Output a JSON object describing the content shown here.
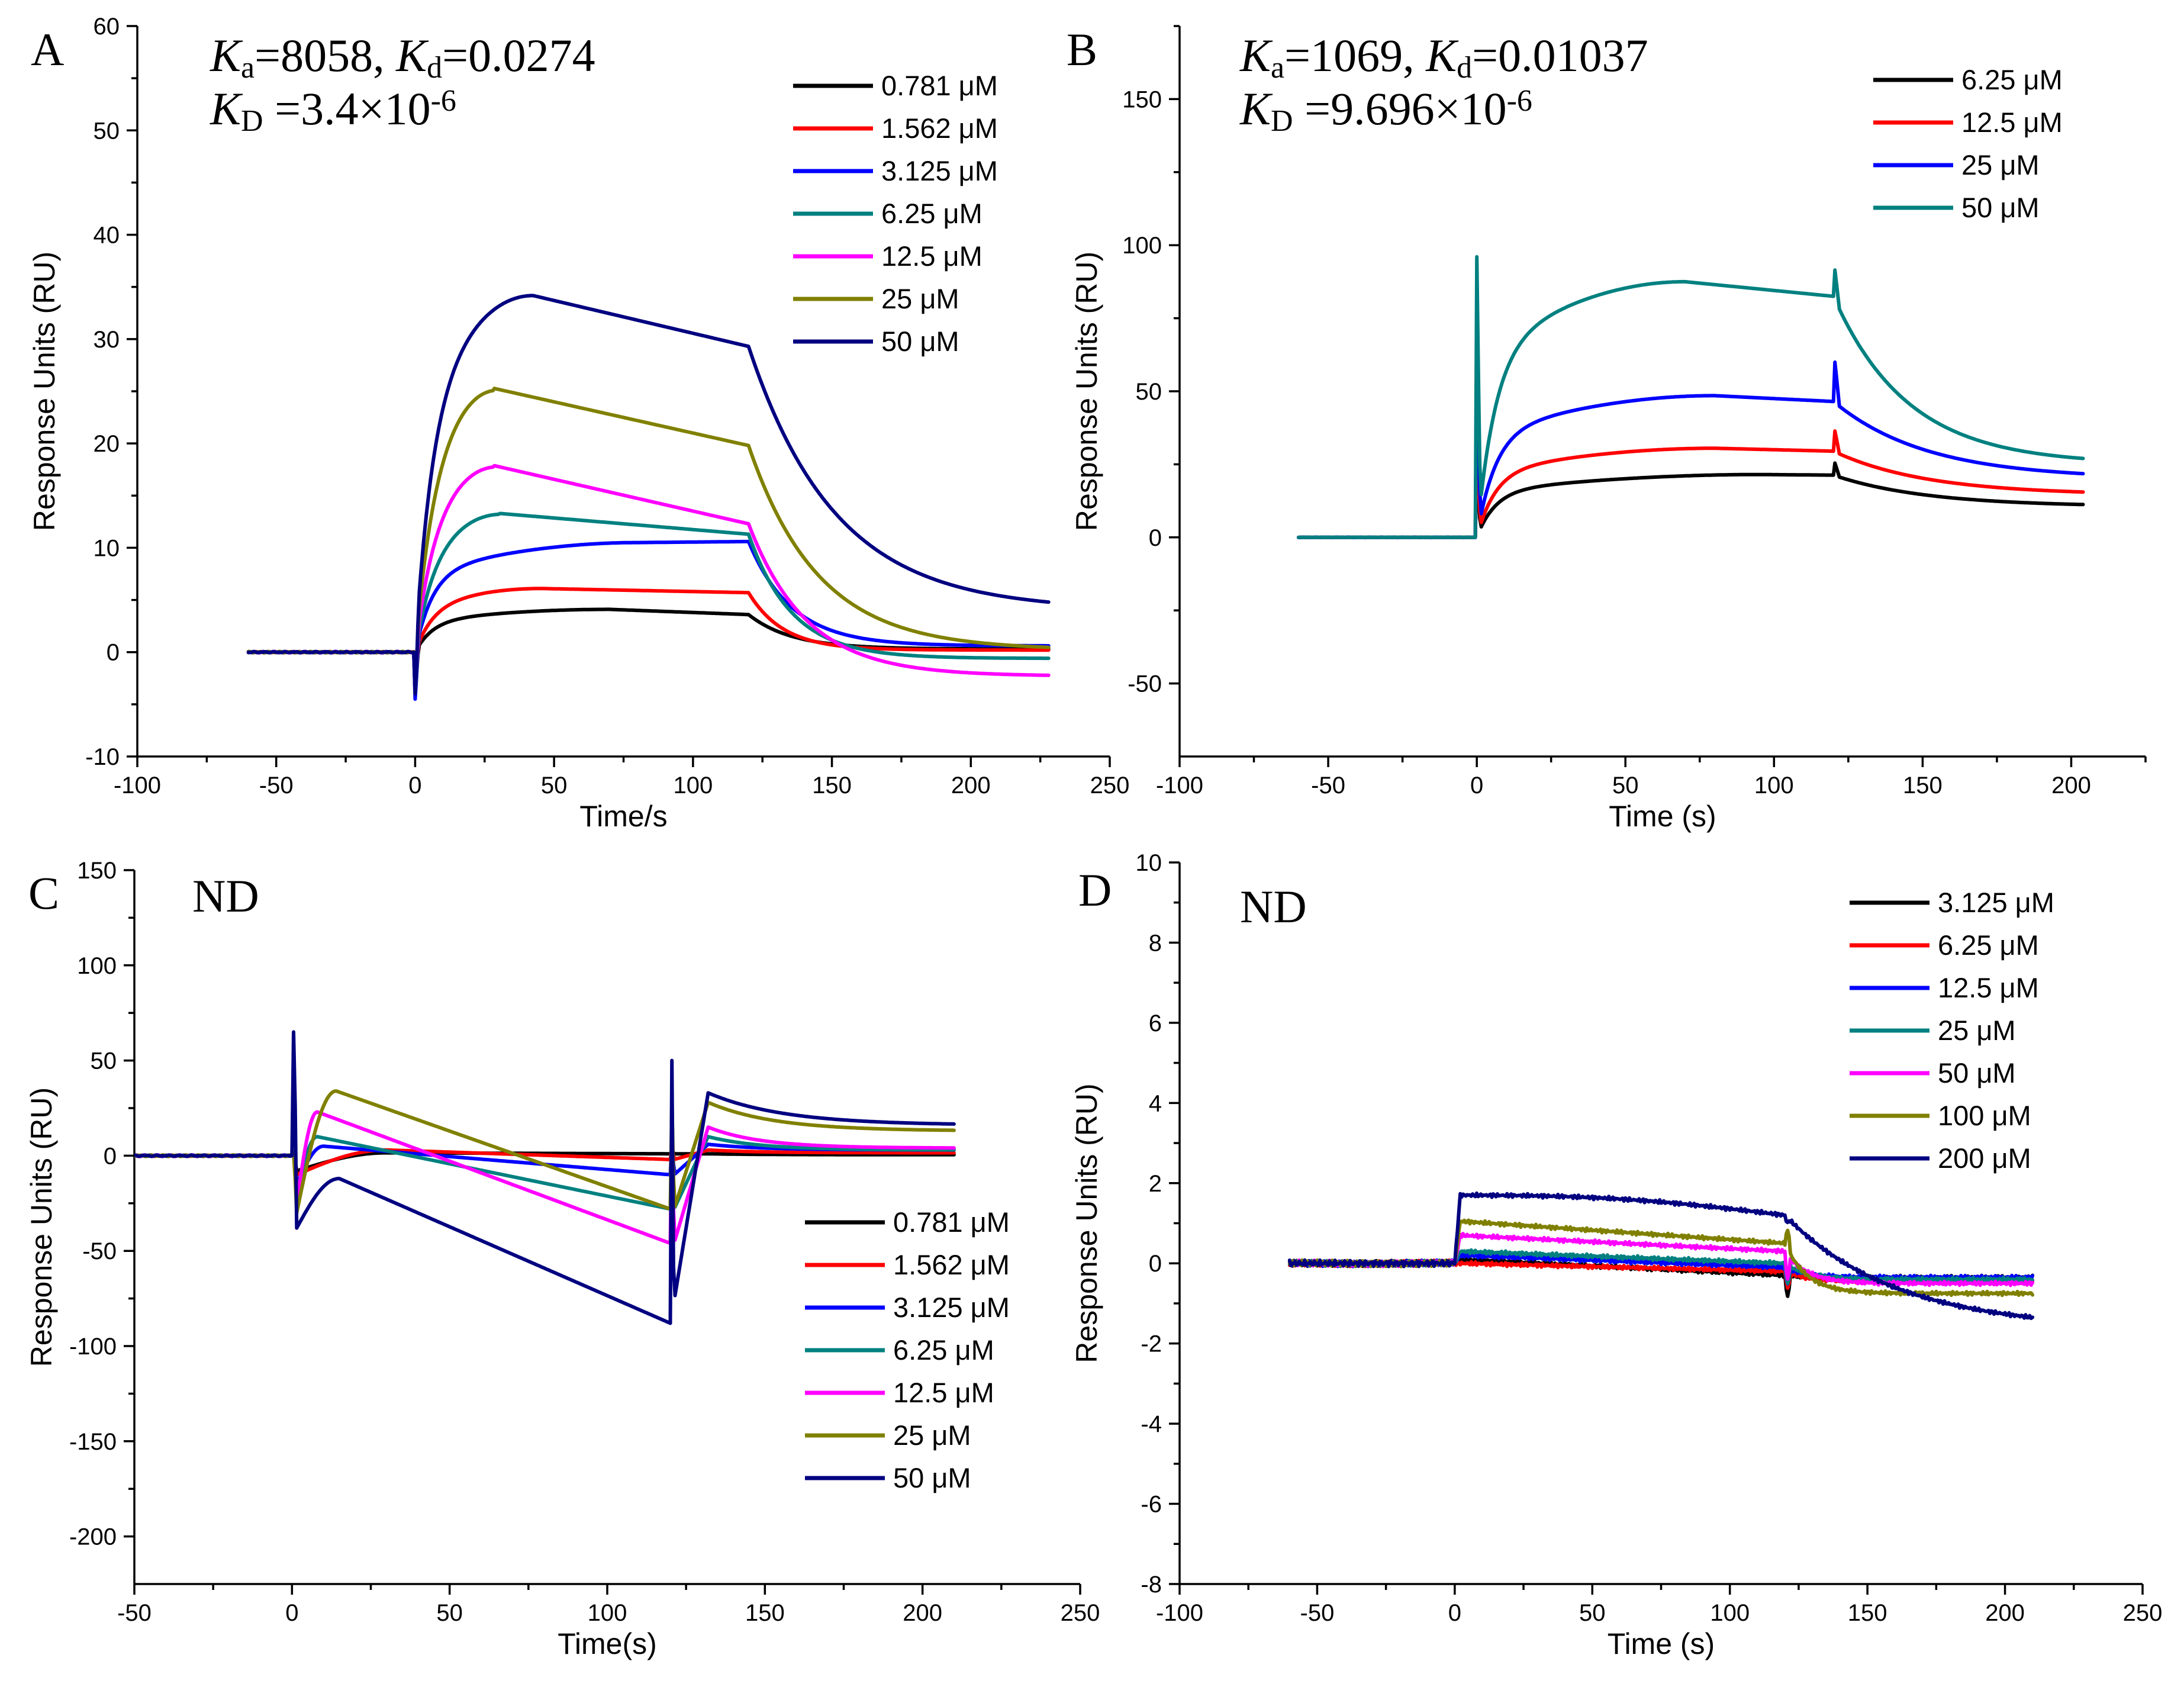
{
  "chart_data": [
    {
      "type": "line",
      "panel": "A",
      "xlabel": "Time/s",
      "ylabel": "Response Units (RU)",
      "xlim": [
        -100,
        250
      ],
      "ylim": [
        -10,
        60
      ],
      "xticks": [
        -100,
        -50,
        0,
        50,
        100,
        150,
        200,
        250
      ],
      "yticks": [
        -10,
        0,
        10,
        20,
        30,
        40,
        50,
        60
      ],
      "annotation": [
        [
          {
            "t": "K",
            "i": true
          },
          {
            "t": "a",
            "sub": true
          },
          {
            "t": "=8058, "
          },
          {
            "t": "K",
            "i": true
          },
          {
            "t": "d",
            "sub": true
          },
          {
            "t": "=0.0274"
          }
        ],
        [
          {
            "t": "K",
            "i": true
          },
          {
            "t": "D",
            "sub": true
          },
          {
            "t": " =3.4×10"
          },
          {
            "t": "-6",
            "sup": true
          }
        ]
      ],
      "legend_position": "top-right",
      "params": {
        "t_end": 228,
        "inj_end": 120
      },
      "series": [
        {
          "name": "0.781 μM",
          "color": "#000000",
          "peak": 4.1,
          "t_peak": 70,
          "end_inj": 3.6,
          "floor": 0.3,
          "decay": 0.04,
          "spike": -4.0
        },
        {
          "name": "1.562 μM",
          "color": "#ff0000",
          "peak": 6.1,
          "t_peak": 45,
          "end_inj": 5.7,
          "floor": 0.2,
          "decay": 0.05,
          "spike": -3.0
        },
        {
          "name": "3.125 μM",
          "color": "#0000ff",
          "peak": 10.5,
          "t_peak": 80,
          "end_inj": 10.6,
          "floor": 0.6,
          "decay": 0.04,
          "spike": -4.5
        },
        {
          "name": "6.25 μM",
          "color": "#008080",
          "peak": 13.3,
          "t_peak": 30,
          "end_inj": 11.3,
          "floor": -0.6,
          "decay": 0.04,
          "spike": -4.0
        },
        {
          "name": "12.5 μM",
          "color": "#ff00ff",
          "peak": 17.9,
          "t_peak": 28,
          "end_inj": 12.3,
          "floor": -2.3,
          "decay": 0.03,
          "spike": -3.5
        },
        {
          "name": "25 μM",
          "color": "#808000",
          "peak": 25.3,
          "t_peak": 28,
          "end_inj": 19.8,
          "floor": 0.2,
          "decay": 0.025,
          "spike": -3.0
        },
        {
          "name": "50 μM",
          "color": "#000080",
          "peak": 34.2,
          "t_peak": 42,
          "end_inj": 29.3,
          "floor": 4.0,
          "decay": 0.02,
          "spike": -4.0
        }
      ]
    },
    {
      "type": "line",
      "panel": "B",
      "xlabel": "Time (s)",
      "ylabel": "Response Units (RU)",
      "xlim": [
        -100,
        225
      ],
      "ylim": [
        -75,
        175
      ],
      "xticks": [
        -100,
        -50,
        0,
        50,
        100,
        150,
        200
      ],
      "yticks": [
        -50,
        0,
        50,
        100,
        150
      ],
      "annotation": [
        [
          {
            "t": "K",
            "i": true
          },
          {
            "t": "a",
            "sub": true
          },
          {
            "t": "=1069, "
          },
          {
            "t": "K",
            "i": true
          },
          {
            "t": "d",
            "sub": true
          },
          {
            "t": "=0.01037"
          }
        ],
        [
          {
            "t": "K",
            "i": true
          },
          {
            "t": "D",
            "sub": true
          },
          {
            "t": " =9.696×10"
          },
          {
            "t": "-6",
            "sup": true
          }
        ]
      ],
      "legend_position": "top-right",
      "params": {
        "t_end": 204,
        "inj_end": 120
      },
      "series": [
        {
          "name": "6.25 μM",
          "color": "#000000",
          "peak": 21.5,
          "t_peak": 95,
          "end_inj": 21.3,
          "floor": 10.5,
          "decay": 0.02,
          "spike": 27
        },
        {
          "name": "12.5 μM",
          "color": "#ff0000",
          "peak": 30.5,
          "t_peak": 80,
          "end_inj": 29.5,
          "floor": 14.5,
          "decay": 0.02,
          "spike": 39
        },
        {
          "name": "25 μM",
          "color": "#0000ff",
          "peak": 48.5,
          "t_peak": 80,
          "end_inj": 46.5,
          "floor": 20,
          "decay": 0.02,
          "spike": 65
        },
        {
          "name": "50 μM",
          "color": "#008080",
          "peak": 87.5,
          "t_peak": 70,
          "end_inj": 82.5,
          "floor": 25,
          "decay": 0.025,
          "spike": 96
        }
      ]
    },
    {
      "type": "line",
      "panel": "C",
      "annotation_text": "ND",
      "xlabel": "Time(s)",
      "ylabel": "Response Units (RU)",
      "xlim": [
        -50,
        250
      ],
      "ylim": [
        -225,
        150
      ],
      "xticks": [
        -50,
        0,
        50,
        100,
        150,
        200,
        250
      ],
      "yticks": [
        -200,
        -150,
        -100,
        -50,
        0,
        50,
        100,
        150
      ],
      "legend_position": "bottom-right",
      "params": {
        "t_end": 210,
        "inj_end": 120
      },
      "series": [
        {
          "name": "0.781 μM",
          "color": "#000000",
          "peak": 1.5,
          "t_peak": 30,
          "end_inj": 1.0,
          "floor": 0.5,
          "rebound": 1.0,
          "decay": 0.05,
          "spike": -8,
          "spike2": 3
        },
        {
          "name": "1.562 μM",
          "color": "#ff0000",
          "peak": 3.0,
          "t_peak": 30,
          "end_inj": -2.0,
          "floor": 1.5,
          "rebound": 3.0,
          "decay": 0.05,
          "spike": -10,
          "spike2": 5
        },
        {
          "name": "3.125 μM",
          "color": "#0000ff",
          "peak": 5.0,
          "t_peak": 10,
          "end_inj": -10,
          "floor": 3.0,
          "rebound": 6.0,
          "decay": 0.05,
          "spike": -15,
          "spike2": 10
        },
        {
          "name": "6.25 μM",
          "color": "#008080",
          "peak": 10,
          "t_peak": 8,
          "end_inj": -28,
          "floor": 3.0,
          "rebound": 10,
          "decay": 0.05,
          "spike": -20,
          "spike2": 12
        },
        {
          "name": "12.5 μM",
          "color": "#ff00ff",
          "peak": 23,
          "t_peak": 8,
          "end_inj": -46,
          "floor": 4.0,
          "rebound": 15,
          "decay": 0.05,
          "spike": -25,
          "spike2": 15
        },
        {
          "name": "25 μM",
          "color": "#808000",
          "peak": 34,
          "t_peak": 14,
          "end_inj": -28,
          "floor": 13,
          "rebound": 28,
          "decay": 0.04,
          "spike": -30,
          "spike2": 30
        },
        {
          "name": "50 μM",
          "color": "#000080",
          "peak": -12,
          "t_peak": 15,
          "end_inj": -88,
          "floor": 16,
          "rebound": 33,
          "decay": 0.035,
          "spike": -38,
          "spike_up": 78,
          "spike2": 50,
          "spike2_low": -102
        }
      ]
    },
    {
      "type": "line",
      "panel": "D",
      "annotation_text": "ND",
      "xlabel": "Time (s)",
      "ylabel": "Response Units (RU)",
      "xlim": [
        -100,
        250
      ],
      "ylim": [
        -8,
        10
      ],
      "xticks": [
        -100,
        -50,
        0,
        50,
        100,
        150,
        200,
        250
      ],
      "yticks": [
        -8,
        -6,
        -4,
        -2,
        0,
        2,
        4,
        6,
        8,
        10
      ],
      "legend_position": "top-right",
      "params": {
        "t_end": 210,
        "inj_end": 120
      },
      "series": [
        {
          "name": "3.125 μM",
          "color": "#000000",
          "start": 0.1,
          "end_inj": -0.3,
          "floor": -0.35,
          "spike": -0.8
        },
        {
          "name": "6.25 μM",
          "color": "#ff0000",
          "start": 0.0,
          "end_inj": -0.2,
          "floor": -0.45,
          "spike": -0.6
        },
        {
          "name": "12.5 μM",
          "color": "#0000ff",
          "start": 0.2,
          "end_inj": -0.1,
          "floor": -0.35,
          "spike": -0.5
        },
        {
          "name": "25 μM",
          "color": "#008080",
          "start": 0.3,
          "end_inj": 0.0,
          "floor": -0.4,
          "spike": -0.5
        },
        {
          "name": "50 μM",
          "color": "#ff00ff",
          "start": 0.7,
          "end_inj": 0.3,
          "floor": -0.5,
          "spike": -0.4
        },
        {
          "name": "100 μM",
          "color": "#808000",
          "start": 1.05,
          "end_inj": 0.5,
          "floor": -0.75,
          "spike": 0.8
        },
        {
          "name": "200 μM",
          "color": "#000080",
          "start": 1.7,
          "end_inj": 1.2,
          "floor": -1.65,
          "spike": 1.0
        }
      ]
    }
  ]
}
